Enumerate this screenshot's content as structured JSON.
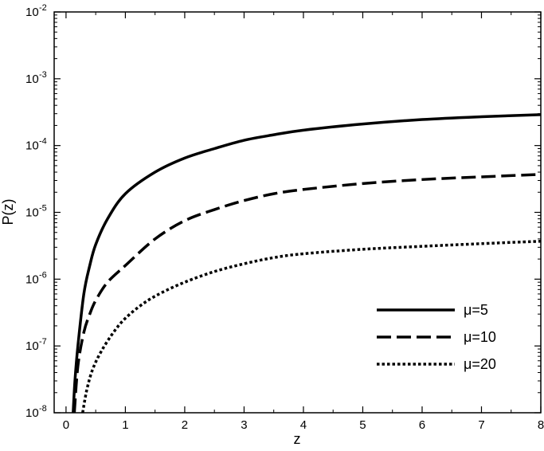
{
  "chart_data": {
    "type": "line",
    "title": "",
    "xlabel": "z",
    "ylabel": "P(z)",
    "xlim": [
      -0.2,
      8
    ],
    "ylim": [
      1e-08,
      0.01
    ],
    "yscale": "log",
    "grid": false,
    "legend_position": "bottom-right",
    "x_ticks": [
      "0",
      "1",
      "2",
      "3",
      "4",
      "5",
      "6",
      "7",
      "8"
    ],
    "y_ticks": [
      {
        "base": "10",
        "exp": "-8"
      },
      {
        "base": "10",
        "exp": "-7"
      },
      {
        "base": "10",
        "exp": "-6"
      },
      {
        "base": "10",
        "exp": "-5"
      },
      {
        "base": "10",
        "exp": "-4"
      },
      {
        "base": "10",
        "exp": "-3"
      },
      {
        "base": "10",
        "exp": "-2"
      }
    ],
    "series": [
      {
        "name": "μ=5",
        "style": "solid",
        "x": [
          0.12,
          0.15,
          0.2,
          0.3,
          0.4,
          0.5,
          0.7,
          1.0,
          1.5,
          2.0,
          2.5,
          3.0,
          3.5,
          4.0,
          5.0,
          6.0,
          7.0,
          8.0
        ],
        "y": [
          1e-08,
          3e-08,
          1e-07,
          6e-07,
          1.6e-06,
          3.3e-06,
          8e-06,
          1.9e-05,
          4e-05,
          6.5e-05,
          9e-05,
          0.00012,
          0.000145,
          0.00017,
          0.00021,
          0.000245,
          0.00027,
          0.00029
        ]
      },
      {
        "name": "μ=10",
        "style": "dashed",
        "x": [
          0.14,
          0.2,
          0.3,
          0.4,
          0.5,
          0.7,
          1.0,
          1.5,
          2.0,
          2.5,
          3.0,
          3.5,
          4.0,
          5.0,
          6.0,
          7.0,
          8.0
        ],
        "y": [
          1e-08,
          5e-08,
          1.6e-07,
          3e-07,
          4.8e-07,
          9e-07,
          1.6e-06,
          4e-06,
          7.5e-06,
          1.1e-05,
          1.5e-05,
          1.9e-05,
          2.2e-05,
          2.7e-05,
          3.1e-05,
          3.4e-05,
          3.7e-05
        ]
      },
      {
        "name": "μ=20",
        "style": "dotted",
        "x": [
          0.28,
          0.35,
          0.45,
          0.6,
          0.8,
          1.0,
          1.3,
          1.6,
          2.0,
          2.5,
          3.0,
          3.5,
          4.0,
          5.0,
          6.0,
          7.0,
          8.0
        ],
        "y": [
          1e-08,
          2.2e-08,
          4.5e-08,
          8.5e-08,
          1.6e-07,
          2.6e-07,
          4.3e-07,
          6.2e-07,
          9e-07,
          1.3e-06,
          1.7e-06,
          2.1e-06,
          2.4e-06,
          2.8e-06,
          3.1e-06,
          3.4e-06,
          3.7e-06
        ]
      }
    ]
  }
}
